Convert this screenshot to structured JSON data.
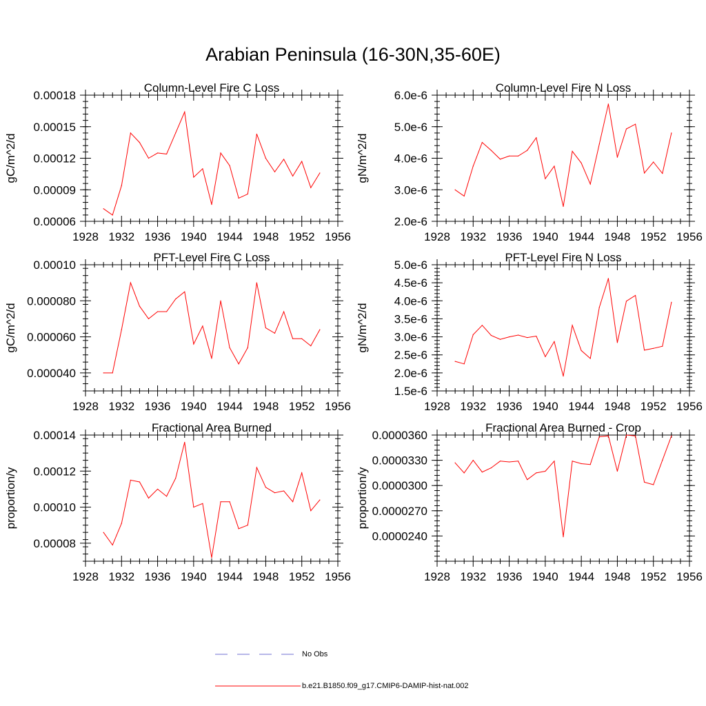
{
  "title": "Arabian Peninsula (16-30N,35-60E)",
  "legend": {
    "items": [
      {
        "label": "No Obs",
        "color": "#6f6fd0",
        "style": "dashed"
      },
      {
        "label": "b.e21.B1850.f09_g17.CMIP6-DAMIP-hist-nat.002",
        "color": "#ff0000",
        "style": "solid"
      }
    ]
  },
  "chart_data": [
    {
      "type": "line",
      "title": "Column-Level Fire C Loss",
      "ylabel": "gC/m^2/d",
      "xlim": [
        1928,
        1956
      ],
      "xticks": [
        "1928",
        "1932",
        "1936",
        "1940",
        "1944",
        "1948",
        "1952",
        "1956"
      ],
      "ylim": [
        6e-05,
        0.00018
      ],
      "yticks": [
        6e-05,
        9e-05,
        0.00012,
        0.00015,
        0.00018
      ],
      "yticklabels": [
        "0.00006",
        "0.00009",
        "0.00012",
        "0.00015",
        "0.00018"
      ],
      "series": [
        {
          "name": "b.e21.B1850.f09_g17.CMIP6-DAMIP-hist-nat.002",
          "color": "#ff0000",
          "x": [
            1930,
            1931,
            1932,
            1933,
            1934,
            1935,
            1936,
            1937,
            1938,
            1939,
            1940,
            1941,
            1942,
            1943,
            1944,
            1945,
            1946,
            1947,
            1948,
            1949,
            1950,
            1951,
            1952,
            1953,
            1954
          ],
          "values": [
            7.2e-05,
            6.6e-05,
            9.4e-05,
            0.000144,
            0.000135,
            0.00012,
            0.000125,
            0.000124,
            0.000144,
            0.000164,
            0.000102,
            0.00011,
            7.6e-05,
            0.000125,
            0.000113,
            8.2e-05,
            8.6e-05,
            0.000143,
            0.00012,
            0.000107,
            0.000119,
            0.000103,
            0.000117,
            9.2e-05,
            0.000106
          ]
        }
      ]
    },
    {
      "type": "line",
      "title": "Column-Level Fire N Loss",
      "ylabel": "gN/m^2/d",
      "xlim": [
        1928,
        1956
      ],
      "xticks": [
        "1928",
        "1932",
        "1936",
        "1940",
        "1944",
        "1948",
        "1952",
        "1956"
      ],
      "ylim": [
        2e-06,
        6e-06
      ],
      "yticks": [
        2e-06,
        3e-06,
        4e-06,
        5e-06,
        6e-06
      ],
      "yticklabels": [
        "2.0e-6",
        "3.0e-6",
        "4.0e-6",
        "5.0e-6",
        "6.0e-6"
      ],
      "series": [
        {
          "name": "b.e21.B1850.f09_g17.CMIP6-DAMIP-hist-nat.002",
          "color": "#ff0000",
          "x": [
            1930,
            1931,
            1932,
            1933,
            1934,
            1935,
            1936,
            1937,
            1938,
            1939,
            1940,
            1941,
            1942,
            1943,
            1944,
            1945,
            1946,
            1947,
            1948,
            1949,
            1950,
            1951,
            1952,
            1953,
            1954
          ],
          "values": [
            3e-06,
            2.8e-06,
            3.75e-06,
            4.5e-06,
            4.25e-06,
            3.97e-06,
            4.07e-06,
            4.07e-06,
            4.25e-06,
            4.65e-06,
            3.35e-06,
            3.75e-06,
            2.47e-06,
            4.22e-06,
            3.85e-06,
            3.18e-06,
            4.45e-06,
            5.72e-06,
            4.03e-06,
            4.93e-06,
            5.08e-06,
            3.53e-06,
            3.88e-06,
            3.52e-06,
            4.8e-06
          ]
        }
      ]
    },
    {
      "type": "line",
      "title": "PFT-Level Fire C Loss",
      "ylabel": "gC/m^2/d",
      "xlim": [
        1928,
        1956
      ],
      "xticks": [
        "1928",
        "1932",
        "1936",
        "1940",
        "1944",
        "1948",
        "1952",
        "1956"
      ],
      "ylim": [
        3e-05,
        0.0001
      ],
      "yticks": [
        4e-05,
        6e-05,
        8e-05,
        0.0001
      ],
      "yticklabels": [
        "0.000040",
        "0.000060",
        "0.000080",
        "0.00010"
      ],
      "series": [
        {
          "name": "b.e21.B1850.f09_g17.CMIP6-DAMIP-hist-nat.002",
          "color": "#ff0000",
          "x": [
            1930,
            1931,
            1932,
            1933,
            1934,
            1935,
            1936,
            1937,
            1938,
            1939,
            1940,
            1941,
            1942,
            1943,
            1944,
            1945,
            1946,
            1947,
            1948,
            1949,
            1950,
            1951,
            1952,
            1953,
            1954
          ],
          "values": [
            4e-05,
            4e-05,
            6.4e-05,
            9e-05,
            7.7e-05,
            7e-05,
            7.4e-05,
            7.4e-05,
            8.1e-05,
            8.5e-05,
            5.6e-05,
            6.6e-05,
            4.8e-05,
            8e-05,
            5.4e-05,
            4.5e-05,
            5.4e-05,
            9e-05,
            6.5e-05,
            6.2e-05,
            7.4e-05,
            5.9e-05,
            5.9e-05,
            5.5e-05,
            6.4e-05
          ]
        }
      ]
    },
    {
      "type": "line",
      "title": "PFT-Level Fire N Loss",
      "ylabel": "gN/m^2/d",
      "xlim": [
        1928,
        1956
      ],
      "xticks": [
        "1928",
        "1932",
        "1936",
        "1940",
        "1944",
        "1948",
        "1952",
        "1956"
      ],
      "ylim": [
        1.5e-06,
        5e-06
      ],
      "yticks": [
        1.5e-06,
        2e-06,
        2.5e-06,
        3e-06,
        3.5e-06,
        4e-06,
        4.5e-06,
        5e-06
      ],
      "yticklabels": [
        "1.5e-6",
        "2.0e-6",
        "2.5e-6",
        "3.0e-6",
        "3.5e-6",
        "4.0e-6",
        "4.5e-6",
        "5.0e-6"
      ],
      "series": [
        {
          "name": "b.e21.B1850.f09_g17.CMIP6-DAMIP-hist-nat.002",
          "color": "#ff0000",
          "x": [
            1930,
            1931,
            1932,
            1933,
            1934,
            1935,
            1936,
            1937,
            1938,
            1939,
            1940,
            1941,
            1942,
            1943,
            1944,
            1945,
            1946,
            1947,
            1948,
            1949,
            1950,
            1951,
            1952,
            1953,
            1954
          ],
          "values": [
            2.32e-06,
            2.25e-06,
            3.06e-06,
            3.32e-06,
            3.04e-06,
            2.93e-06,
            3e-06,
            3.05e-06,
            2.98e-06,
            3.02e-06,
            2.45e-06,
            2.87e-06,
            1.91e-06,
            3.32e-06,
            2.62e-06,
            2.4e-06,
            3.82e-06,
            4.62e-06,
            2.84e-06,
            3.99e-06,
            4.15e-06,
            2.63e-06,
            2.68e-06,
            2.74e-06,
            3.96e-06
          ]
        }
      ]
    },
    {
      "type": "line",
      "title": "Fractional Area Burned",
      "ylabel": "proportion/y",
      "xlim": [
        1928,
        1956
      ],
      "xticks": [
        "1928",
        "1932",
        "1936",
        "1940",
        "1944",
        "1948",
        "1952",
        "1956"
      ],
      "ylim": [
        7e-05,
        0.00014
      ],
      "yticks": [
        8e-05,
        0.0001,
        0.00012,
        0.00014
      ],
      "yticklabels": [
        "0.00008",
        "0.00010",
        "0.00012",
        "0.00014"
      ],
      "series": [
        {
          "name": "b.e21.B1850.f09_g17.CMIP6-DAMIP-hist-nat.002",
          "color": "#ff0000",
          "x": [
            1930,
            1931,
            1932,
            1933,
            1934,
            1935,
            1936,
            1937,
            1938,
            1939,
            1940,
            1941,
            1942,
            1943,
            1944,
            1945,
            1946,
            1947,
            1948,
            1949,
            1950,
            1951,
            1952,
            1953,
            1954
          ],
          "values": [
            8.6e-05,
            7.9e-05,
            9.1e-05,
            0.000115,
            0.000114,
            0.000105,
            0.00011,
            0.000106,
            0.000116,
            0.000136,
            0.0001,
            0.000102,
            7.2e-05,
            0.000103,
            0.000103,
            8.8e-05,
            9e-05,
            0.000122,
            0.000111,
            0.000108,
            0.000109,
            0.000103,
            0.000119,
            9.8e-05,
            0.000104
          ]
        }
      ]
    },
    {
      "type": "line",
      "title": "Fractional Area Burned - Crop",
      "ylabel": "proportion/y",
      "xlim": [
        1928,
        1956
      ],
      "xticks": [
        "1928",
        "1932",
        "1936",
        "1940",
        "1944",
        "1948",
        "1952",
        "1956"
      ],
      "ylim": [
        2.1e-05,
        3.6e-05
      ],
      "yticks": [
        2.4e-05,
        2.7e-05,
        3e-05,
        3.3e-05,
        3.6e-05
      ],
      "yticklabels": [
        "0.0000240",
        "0.0000270",
        "0.0000300",
        "0.0000330",
        "0.0000360"
      ],
      "series": [
        {
          "name": "b.e21.B1850.f09_g17.CMIP6-DAMIP-hist-nat.002",
          "color": "#ff0000",
          "x": [
            1930,
            1931,
            1932,
            1933,
            1934,
            1935,
            1936,
            1937,
            1938,
            1939,
            1940,
            1941,
            1942,
            1943,
            1944,
            1945,
            1946,
            1947,
            1948,
            1949,
            1950,
            1951,
            1952,
            1953,
            1954
          ],
          "values": [
            3.27e-05,
            3.15e-05,
            3.3e-05,
            3.16e-05,
            3.21e-05,
            3.29e-05,
            3.28e-05,
            3.29e-05,
            3.07e-05,
            3.15e-05,
            3.17e-05,
            3.29e-05,
            2.39e-05,
            3.29e-05,
            3.26e-05,
            3.25e-05,
            3.58e-05,
            3.59e-05,
            3.17e-05,
            3.6e-05,
            3.59e-05,
            3.04e-05,
            3.01e-05,
            3.3e-05,
            3.59e-05
          ]
        }
      ]
    }
  ]
}
